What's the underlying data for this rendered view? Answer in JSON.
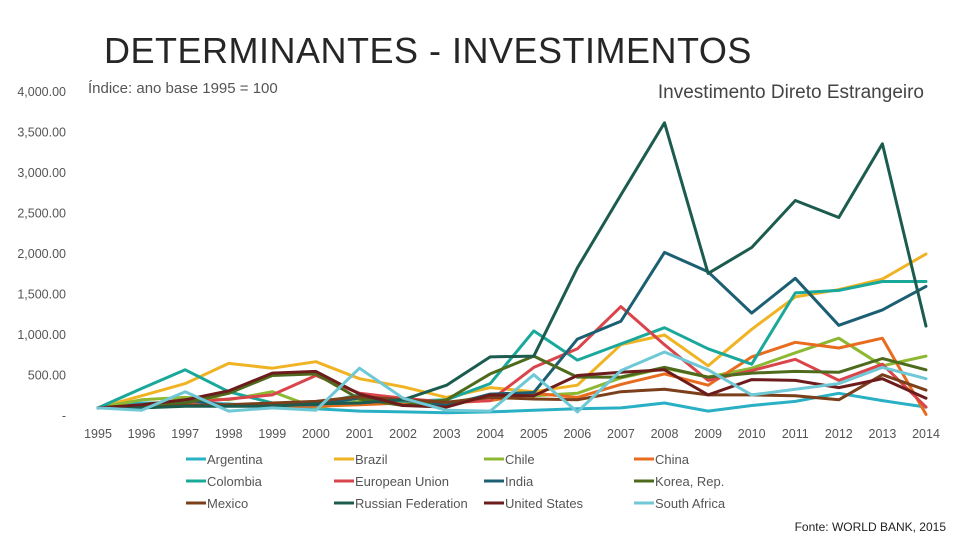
{
  "header": {
    "title": "DETERMINANTES - INVESTIMENTOS",
    "subtitle": "Índice: ano base 1995 = 100",
    "source": "Fonte: WORLD BANK, 2015"
  },
  "chart_data": {
    "type": "line",
    "title": "Investimento Direto Estrangeiro",
    "xlabel": "",
    "ylabel": "",
    "ylim": [
      0,
      4000
    ],
    "y_ticks": [
      0,
      500,
      1000,
      1500,
      2000,
      2500,
      3000,
      3500,
      4000
    ],
    "y_tick_labels": [
      "-",
      "500.00",
      "1,000.00",
      "1,500.00",
      "2,000.00",
      "2,500.00",
      "3,000.00",
      "3,500.00",
      "4,000.00"
    ],
    "grid": false,
    "legend_position": "bottom",
    "x": [
      "1995",
      "1996",
      "1997",
      "1998",
      "1999",
      "2000",
      "2001",
      "2002",
      "2003",
      "2004",
      "2005",
      "2006",
      "2007",
      "2008",
      "2009",
      "2010",
      "2011",
      "2012",
      "2013",
      "2014"
    ],
    "series": [
      {
        "name": "Argentina",
        "color": "#2ab0c5",
        "values": [
          100,
          160,
          160,
          150,
          110,
          90,
          60,
          50,
          40,
          50,
          70,
          90,
          100,
          160,
          60,
          130,
          180,
          280,
          190,
          110
        ]
      },
      {
        "name": "Brazil",
        "color": "#f0b323",
        "values": [
          100,
          250,
          400,
          650,
          590,
          670,
          460,
          360,
          230,
          350,
          300,
          380,
          880,
          1000,
          620,
          1070,
          1470,
          1560,
          1690,
          2000
        ]
      },
      {
        "name": "Chile",
        "color": "#8db832",
        "values": [
          100,
          200,
          230,
          200,
          300,
          100,
          180,
          150,
          160,
          250,
          250,
          280,
          470,
          590,
          480,
          590,
          780,
          960,
          620,
          740
        ]
      },
      {
        "name": "China",
        "color": "#e86c1f",
        "values": [
          100,
          130,
          130,
          140,
          120,
          120,
          140,
          160,
          160,
          190,
          280,
          230,
          390,
          520,
          380,
          730,
          910,
          840,
          960,
          20
        ]
      },
      {
        "name": "Colombia",
        "color": "#1aa89a",
        "values": [
          100,
          340,
          570,
          300,
          160,
          150,
          260,
          180,
          200,
          400,
          1050,
          690,
          890,
          1090,
          830,
          640,
          1520,
          1550,
          1660,
          1660
        ]
      },
      {
        "name": "European Union",
        "color": "#d9454b",
        "values": [
          100,
          120,
          160,
          210,
          260,
          500,
          280,
          220,
          170,
          190,
          600,
          830,
          1350,
          880,
          440,
          560,
          700,
          440,
          640,
          110
        ]
      },
      {
        "name": "India",
        "color": "#1c5f73",
        "values": [
          100,
          120,
          200,
          130,
          140,
          140,
          220,
          200,
          130,
          270,
          290,
          950,
          1170,
          2020,
          1780,
          1270,
          1700,
          1120,
          1310,
          1600
        ]
      },
      {
        "name": "Korea, Rep.",
        "color": "#4e6b1d",
        "values": [
          100,
          110,
          160,
          280,
          500,
          520,
          210,
          130,
          200,
          520,
          740,
          480,
          480,
          600,
          480,
          530,
          550,
          540,
          710,
          570
        ]
      },
      {
        "name": "Mexico",
        "color": "#7b3f1b",
        "values": [
          100,
          100,
          130,
          140,
          160,
          180,
          240,
          200,
          170,
          230,
          210,
          200,
          300,
          330,
          260,
          260,
          250,
          200,
          510,
          320
        ]
      },
      {
        "name": "Russian Federation",
        "color": "#1c5c4f",
        "values": [
          100,
          100,
          120,
          120,
          120,
          150,
          160,
          200,
          380,
          730,
          740,
          1830,
          2730,
          3620,
          1760,
          2080,
          2660,
          2450,
          3360,
          1110
        ]
      },
      {
        "name": "United States",
        "color": "#6d1c1c",
        "values": [
          100,
          140,
          200,
          310,
          530,
          550,
          270,
          130,
          110,
          260,
          250,
          500,
          540,
          570,
          260,
          450,
          440,
          350,
          460,
          220
        ]
      },
      {
        "name": "South Africa",
        "color": "#6fc8d6",
        "values": [
          100,
          70,
          300,
          60,
          100,
          70,
          590,
          220,
          70,
          60,
          510,
          50,
          560,
          790,
          570,
          260,
          330,
          400,
          600,
          460
        ]
      }
    ]
  }
}
